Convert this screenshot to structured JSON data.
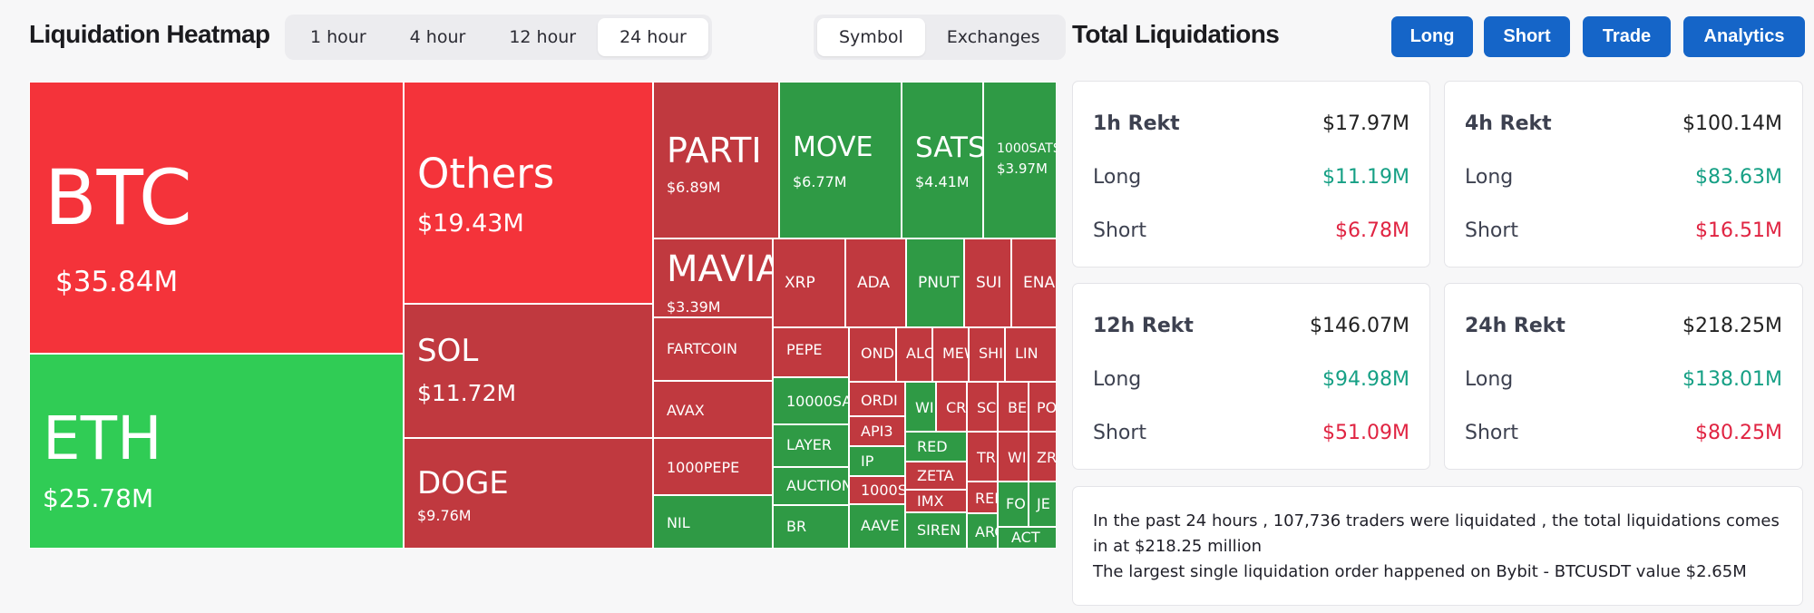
{
  "heatmap": {
    "title": "Liquidation Heatmap",
    "time_options": [
      "1 hour",
      "4 hour",
      "12 hour",
      "24 hour"
    ],
    "time_selected": "24 hour",
    "view_options": [
      "Symbol",
      "Exchanges"
    ],
    "view_selected": "Symbol"
  },
  "total": {
    "title": "Total Liquidations",
    "buttons": [
      "Long",
      "Short",
      "Trade",
      "Analytics"
    ]
  },
  "colors": {
    "bright_red": "#f4333a",
    "dark_red": "#c0393f",
    "bright_green": "#30cc55",
    "dark_green": "#2f9a45",
    "positive_text": "#16a085",
    "negative_text": "#e02442",
    "button_blue": "#1565c8"
  },
  "tiles": [
    {
      "symbol": "BTC",
      "value": "$35.84M",
      "color": "bright_red"
    },
    {
      "symbol": "ETH",
      "value": "$25.78M",
      "color": "bright_green"
    },
    {
      "symbol": "Others",
      "value": "$19.43M",
      "color": "bright_red"
    },
    {
      "symbol": "SOL",
      "value": "$11.72M",
      "color": "dark_red"
    },
    {
      "symbol": "DOGE",
      "value": "$9.76M",
      "color": "dark_red"
    },
    {
      "symbol": "PARTI",
      "value": "$6.89M",
      "color": "dark_red"
    },
    {
      "symbol": "MOVE",
      "value": "$6.77M",
      "color": "dark_green"
    },
    {
      "symbol": "SATS",
      "value": "$4.41M",
      "color": "dark_green"
    },
    {
      "symbol": "1000SATS",
      "value": "$3.97M",
      "color": "dark_green"
    },
    {
      "symbol": "MAVIA",
      "value": "$3.39M",
      "color": "dark_red"
    },
    {
      "symbol": "XRP",
      "value": "",
      "color": "dark_red"
    },
    {
      "symbol": "ADA",
      "value": "",
      "color": "dark_red"
    },
    {
      "symbol": "PNUT",
      "value": "",
      "color": "dark_green"
    },
    {
      "symbol": "SUI",
      "value": "",
      "color": "dark_red"
    },
    {
      "symbol": "ENA",
      "value": "",
      "color": "dark_red"
    },
    {
      "symbol": "FARTCOIN",
      "value": "",
      "color": "dark_red"
    },
    {
      "symbol": "PEPE",
      "value": "",
      "color": "dark_red"
    },
    {
      "symbol": "OND",
      "value": "",
      "color": "dark_red"
    },
    {
      "symbol": "ALC",
      "value": "",
      "color": "dark_red"
    },
    {
      "symbol": "MEW",
      "value": "",
      "color": "dark_red"
    },
    {
      "symbol": "SHI",
      "value": "",
      "color": "dark_red"
    },
    {
      "symbol": "LIN",
      "value": "",
      "color": "dark_red"
    },
    {
      "symbol": "AVAX",
      "value": "",
      "color": "dark_red"
    },
    {
      "symbol": "10000SA",
      "value": "",
      "color": "dark_green"
    },
    {
      "symbol": "ORDI",
      "value": "",
      "color": "dark_red"
    },
    {
      "symbol": "WI",
      "value": "",
      "color": "dark_green"
    },
    {
      "symbol": "CR",
      "value": "",
      "color": "dark_red"
    },
    {
      "symbol": "SC",
      "value": "",
      "color": "dark_red"
    },
    {
      "symbol": "BE",
      "value": "",
      "color": "dark_red"
    },
    {
      "symbol": "PO",
      "value": "",
      "color": "dark_red"
    },
    {
      "symbol": "1000PEPE",
      "value": "",
      "color": "dark_red"
    },
    {
      "symbol": "LAYER",
      "value": "",
      "color": "dark_green"
    },
    {
      "symbol": "API3",
      "value": "",
      "color": "dark_red"
    },
    {
      "symbol": "RED",
      "value": "",
      "color": "dark_green"
    },
    {
      "symbol": "TR",
      "value": "",
      "color": "dark_red"
    },
    {
      "symbol": "WI",
      "value": "",
      "color": "dark_red"
    },
    {
      "symbol": "ZR",
      "value": "",
      "color": "dark_red"
    },
    {
      "symbol": "IP",
      "value": "",
      "color": "dark_green"
    },
    {
      "symbol": "ZETA",
      "value": "",
      "color": "dark_red"
    },
    {
      "symbol": "AUCTION",
      "value": "",
      "color": "dark_green"
    },
    {
      "symbol": "1000S",
      "value": "",
      "color": "dark_red"
    },
    {
      "symbol": "IMX",
      "value": "",
      "color": "dark_red"
    },
    {
      "symbol": "REI",
      "value": "",
      "color": "dark_red"
    },
    {
      "symbol": "FO",
      "value": "",
      "color": "dark_green"
    },
    {
      "symbol": "JE",
      "value": "",
      "color": "dark_green"
    },
    {
      "symbol": "NIL",
      "value": "",
      "color": "dark_green"
    },
    {
      "symbol": "BR",
      "value": "",
      "color": "dark_green"
    },
    {
      "symbol": "AAVE",
      "value": "",
      "color": "dark_green"
    },
    {
      "symbol": "SIREN",
      "value": "",
      "color": "dark_green"
    },
    {
      "symbol": "ARC",
      "value": "",
      "color": "dark_green"
    },
    {
      "symbol": "ACT",
      "value": "",
      "color": "dark_green"
    }
  ],
  "cards": [
    {
      "label": "1h Rekt",
      "total": "$17.97M",
      "long_label": "Long",
      "long": "$11.19M",
      "short_label": "Short",
      "short": "$6.78M"
    },
    {
      "label": "4h Rekt",
      "total": "$100.14M",
      "long_label": "Long",
      "long": "$83.63M",
      "short_label": "Short",
      "short": "$16.51M"
    },
    {
      "label": "12h Rekt",
      "total": "$146.07M",
      "long_label": "Long",
      "long": "$94.98M",
      "short_label": "Short",
      "short": "$51.09M"
    },
    {
      "label": "24h Rekt",
      "total": "$218.25M",
      "long_label": "Long",
      "long": "$138.01M",
      "short_label": "Short",
      "short": "$80.25M"
    }
  ],
  "summary": {
    "line1": "In the past 24 hours , 107,736 traders were liquidated , the total liquidations comes in at $218.25 million",
    "line2": "The largest single liquidation order happened on Bybit - BTCUSDT value $2.65M"
  }
}
